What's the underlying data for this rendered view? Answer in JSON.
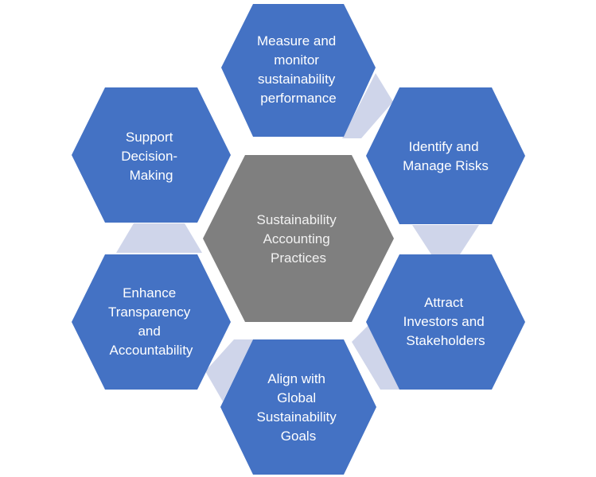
{
  "colors": {
    "outer_hex": "#4472C4",
    "center_hex": "#7F7F7F",
    "connector": "#CFD5EA",
    "text": "#FFFFFF"
  },
  "center": {
    "lines": [
      "Sustainability",
      "Accounting",
      "Practices"
    ]
  },
  "nodes": [
    {
      "id": "measure",
      "lines": [
        "Measure and",
        "monitor",
        "sustainability",
        "performance"
      ]
    },
    {
      "id": "risks",
      "lines": [
        "Identify and",
        "Manage Risks"
      ]
    },
    {
      "id": "investors",
      "lines": [
        "Attract",
        "Investors and",
        "Stakeholders"
      ]
    },
    {
      "id": "goals",
      "lines": [
        "Align with",
        "Global",
        "Sustainability",
        "Goals"
      ]
    },
    {
      "id": "transparency",
      "lines": [
        "Enhance",
        "Transparency",
        "and",
        "Accountability"
      ]
    },
    {
      "id": "decision",
      "lines": [
        "Support",
        "Decision-",
        "Making"
      ]
    }
  ]
}
